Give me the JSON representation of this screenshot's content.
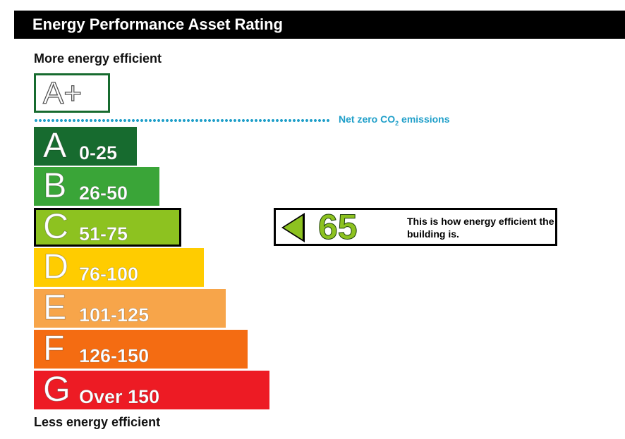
{
  "title": "Energy Performance Asset Rating",
  "labels": {
    "top": "More energy efficient",
    "bottom": "Less energy efficient"
  },
  "aplus": {
    "letter": "A+",
    "border_color": "#176b2f"
  },
  "net_zero": {
    "prefix": "Net zero CO",
    "subscript": "2",
    "suffix": " emissions",
    "color": "#1f9fc9"
  },
  "bands": [
    {
      "letter": "A",
      "range": "0-25",
      "color": "#176b2f"
    },
    {
      "letter": "B",
      "range": "26-50",
      "color": "#3aa538"
    },
    {
      "letter": "C",
      "range": "51-75",
      "color": "#8dc220"
    },
    {
      "letter": "D",
      "range": "76-100",
      "color": "#ffcc00"
    },
    {
      "letter": "E",
      "range": "101-125",
      "color": "#f7a54a"
    },
    {
      "letter": "F",
      "range": "126-150",
      "color": "#f46c12"
    },
    {
      "letter": "G",
      "range": "Over 150",
      "color": "#ed1b24"
    }
  ],
  "rating": {
    "value": "65",
    "band_index": 2,
    "color": "#8dc220",
    "description": "This is how energy efficient the building is."
  }
}
